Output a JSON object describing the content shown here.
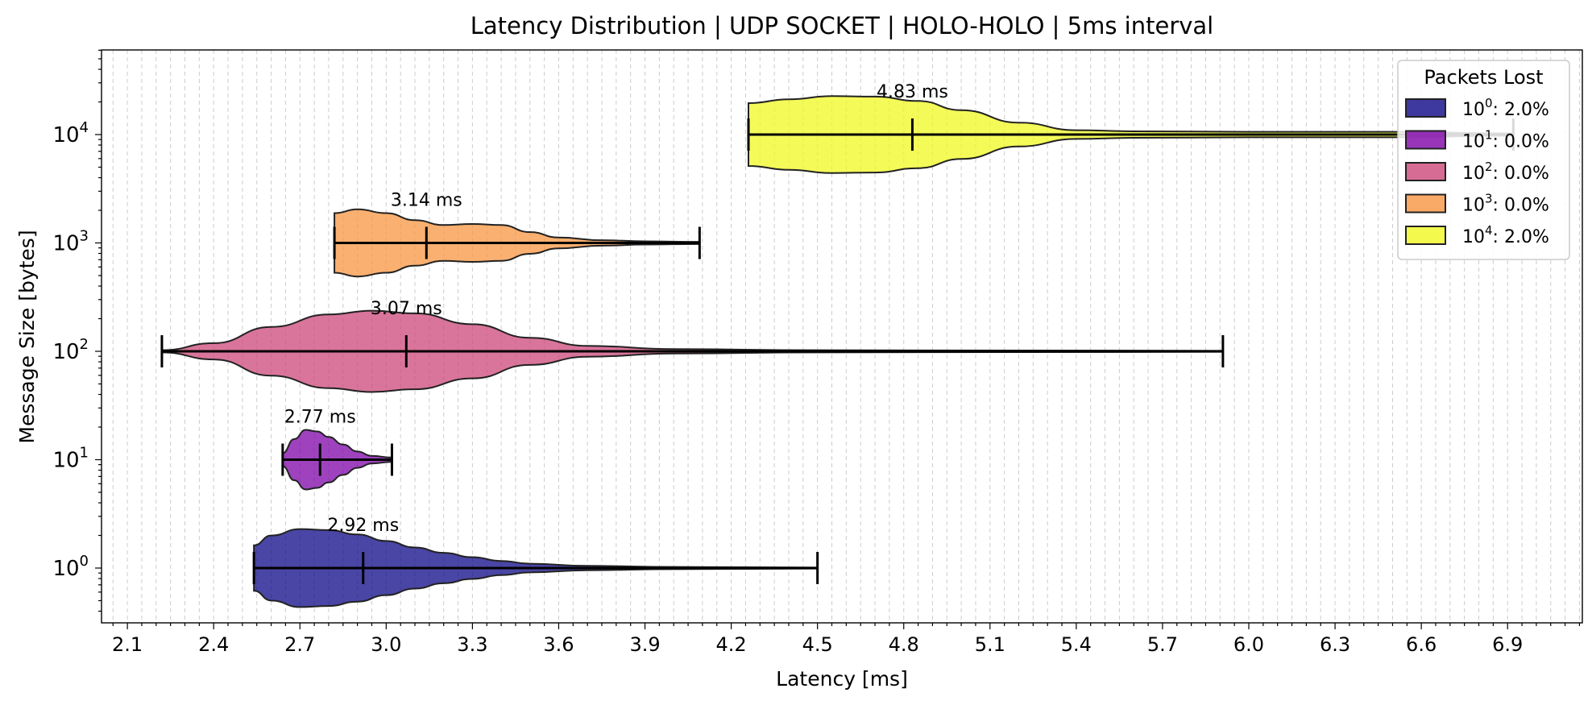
{
  "chart_data": {
    "type": "violin",
    "title": "Latency Distribution | UDP SOCKET | HOLO-HOLO | 5ms interval",
    "xlabel": "Latency [ms]",
    "ylabel": "Message Size [bytes]",
    "xlim": [
      2.01,
      7.16
    ],
    "x_ticks": [
      "2.1",
      "2.4",
      "2.7",
      "3.0",
      "3.3",
      "3.6",
      "3.9",
      "4.2",
      "4.5",
      "4.8",
      "5.1",
      "5.4",
      "5.7",
      "6.0",
      "6.3",
      "6.6",
      "6.9"
    ],
    "y_scale": "log",
    "y_ticks": [
      {
        "base": "10",
        "exp": "0"
      },
      {
        "base": "10",
        "exp": "1"
      },
      {
        "base": "10",
        "exp": "2"
      },
      {
        "base": "10",
        "exp": "3"
      },
      {
        "base": "10",
        "exp": "4"
      }
    ],
    "grid": "vertical dashed",
    "legend": {
      "title": "Packets Lost",
      "placement": "top-right",
      "entries": [
        {
          "base": "10",
          "exp": "0",
          "value": ": 2.0%",
          "color": "#0d0887"
        },
        {
          "base": "10",
          "exp": "1",
          "value": ": 0.0%",
          "color": "#7e03a8"
        },
        {
          "base": "10",
          "exp": "2",
          "value": ": 0.0%",
          "color": "#cc4778"
        },
        {
          "base": "10",
          "exp": "3",
          "value": ": 0.0%",
          "color": "#f89540"
        },
        {
          "base": "10",
          "exp": "4",
          "value": ": 2.0%",
          "color": "#f0f921"
        }
      ]
    },
    "series": [
      {
        "size_exp": 0,
        "min": 2.54,
        "median": 2.92,
        "max": 4.5,
        "label": "2.92 ms",
        "color": "#0d0887",
        "profile": [
          [
            2.54,
            0.42
          ],
          [
            2.6,
            0.6
          ],
          [
            2.7,
            0.72
          ],
          [
            2.8,
            0.7
          ],
          [
            2.9,
            0.62
          ],
          [
            3.0,
            0.5
          ],
          [
            3.1,
            0.38
          ],
          [
            3.2,
            0.28
          ],
          [
            3.3,
            0.2
          ],
          [
            3.4,
            0.13
          ],
          [
            3.5,
            0.08
          ],
          [
            3.7,
            0.04
          ],
          [
            4.0,
            0.02
          ],
          [
            4.5,
            0.01
          ]
        ]
      },
      {
        "size_exp": 1,
        "min": 2.64,
        "median": 2.77,
        "max": 3.02,
        "label": "2.77 ms",
        "color": "#7e03a8",
        "profile": [
          [
            2.64,
            0.12
          ],
          [
            2.68,
            0.38
          ],
          [
            2.72,
            0.55
          ],
          [
            2.76,
            0.52
          ],
          [
            2.8,
            0.42
          ],
          [
            2.85,
            0.28
          ],
          [
            2.9,
            0.15
          ],
          [
            2.95,
            0.07
          ],
          [
            3.02,
            0.04
          ]
        ]
      },
      {
        "size_exp": 2,
        "min": 2.22,
        "median": 3.07,
        "max": 5.91,
        "label": "3.07 ms",
        "color": "#cc4778",
        "profile": [
          [
            2.22,
            0.02
          ],
          [
            2.4,
            0.15
          ],
          [
            2.6,
            0.45
          ],
          [
            2.8,
            0.68
          ],
          [
            2.95,
            0.75
          ],
          [
            3.1,
            0.7
          ],
          [
            3.3,
            0.5
          ],
          [
            3.5,
            0.25
          ],
          [
            3.7,
            0.1
          ],
          [
            4.0,
            0.04
          ],
          [
            4.5,
            0.02
          ],
          [
            5.91,
            0.01
          ]
        ]
      },
      {
        "size_exp": 3,
        "min": 2.82,
        "median": 3.14,
        "max": 4.09,
        "label": "3.14 ms",
        "color": "#f89540",
        "profile": [
          [
            2.82,
            0.55
          ],
          [
            2.9,
            0.62
          ],
          [
            3.0,
            0.55
          ],
          [
            3.1,
            0.42
          ],
          [
            3.2,
            0.33
          ],
          [
            3.3,
            0.35
          ],
          [
            3.4,
            0.33
          ],
          [
            3.5,
            0.2
          ],
          [
            3.6,
            0.1
          ],
          [
            3.75,
            0.05
          ],
          [
            3.9,
            0.03
          ],
          [
            4.09,
            0.02
          ]
        ]
      },
      {
        "size_exp": 4,
        "min": 4.26,
        "median": 4.83,
        "max": 6.92,
        "label": "4.83 ms",
        "color": "#f0f921",
        "profile": [
          [
            4.26,
            0.58
          ],
          [
            4.4,
            0.65
          ],
          [
            4.55,
            0.71
          ],
          [
            4.7,
            0.7
          ],
          [
            4.85,
            0.62
          ],
          [
            5.0,
            0.45
          ],
          [
            5.2,
            0.22
          ],
          [
            5.4,
            0.08
          ],
          [
            5.6,
            0.06
          ],
          [
            6.0,
            0.05
          ],
          [
            6.5,
            0.05
          ],
          [
            6.92,
            0.02
          ]
        ]
      }
    ]
  }
}
